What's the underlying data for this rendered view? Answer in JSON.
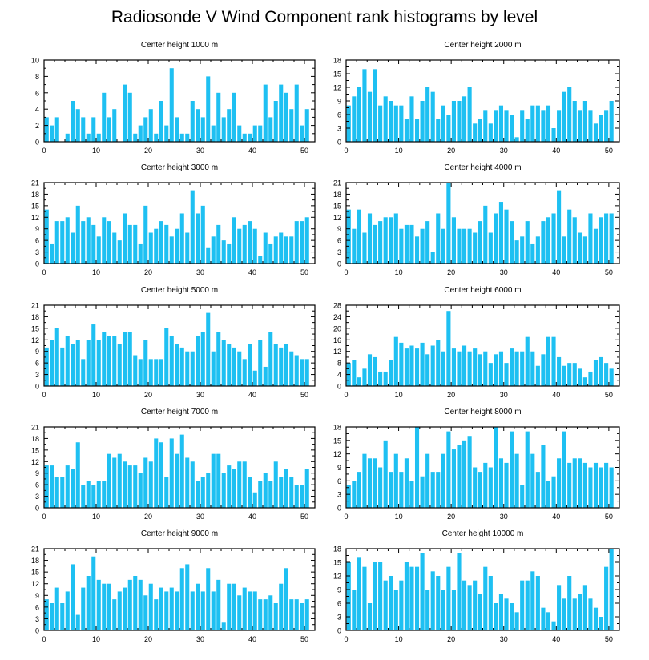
{
  "title": "Radiosonde V Wind Component rank histograms by level",
  "bar_color": "#1ec0f2",
  "chart_data": [
    {
      "type": "bar",
      "title": "Center height 1000 m",
      "xlim": [
        0,
        52
      ],
      "ylim": [
        0,
        10
      ],
      "xticks": [
        0,
        10,
        20,
        30,
        40,
        50
      ],
      "yticks": [
        0,
        2,
        4,
        6,
        8,
        10
      ],
      "values": [
        3,
        2,
        3,
        0,
        1,
        5,
        4,
        3,
        1,
        3,
        1,
        6,
        3,
        4,
        0,
        7,
        6,
        1,
        2,
        3,
        4,
        1,
        5,
        2,
        9,
        3,
        1,
        1,
        5,
        4,
        3,
        8,
        2,
        6,
        3,
        4,
        6,
        2,
        1,
        1,
        2,
        2,
        7,
        3,
        5,
        7,
        6,
        4,
        7,
        2,
        4
      ]
    },
    {
      "type": "bar",
      "title": "Center height 2000 m",
      "xlim": [
        0,
        52
      ],
      "ylim": [
        0,
        18
      ],
      "xticks": [
        0,
        10,
        20,
        30,
        40,
        50
      ],
      "yticks": [
        0,
        3,
        6,
        9,
        12,
        15,
        18
      ],
      "values": [
        8,
        10,
        12,
        16,
        11,
        16,
        8,
        10,
        9,
        8,
        8,
        5,
        10,
        5,
        9,
        12,
        11,
        5,
        8,
        6,
        9,
        9,
        10,
        12,
        4,
        5,
        7,
        4,
        7,
        8,
        7,
        6,
        1,
        7,
        5,
        8,
        8,
        7,
        8,
        3,
        7,
        11,
        12,
        9,
        7,
        9,
        7,
        4,
        6,
        7,
        9
      ]
    },
    {
      "type": "bar",
      "title": "Center height 3000 m",
      "xlim": [
        0,
        52
      ],
      "ylim": [
        0,
        21
      ],
      "xticks": [
        0,
        10,
        20,
        30,
        40,
        50
      ],
      "yticks": [
        0,
        3,
        6,
        9,
        12,
        15,
        18,
        21
      ],
      "values": [
        14,
        5,
        11,
        11,
        12,
        8,
        15,
        11,
        12,
        10,
        7,
        12,
        11,
        8,
        6,
        13,
        10,
        10,
        5,
        15,
        8,
        9,
        11,
        10,
        7,
        9,
        13,
        8,
        19,
        13,
        15,
        4,
        7,
        10,
        6,
        5,
        12,
        9,
        10,
        11,
        9,
        2,
        8,
        5,
        7,
        8,
        7,
        7,
        11,
        11,
        12
      ]
    },
    {
      "type": "bar",
      "title": "Center height 4000 m",
      "xlim": [
        0,
        52
      ],
      "ylim": [
        0,
        21
      ],
      "xticks": [
        0,
        10,
        20,
        30,
        40,
        50
      ],
      "yticks": [
        0,
        3,
        6,
        9,
        12,
        15,
        18,
        21
      ],
      "values": [
        14,
        9,
        14,
        8,
        13,
        10,
        11,
        12,
        12,
        13,
        9,
        10,
        10,
        7,
        9,
        11,
        3,
        13,
        9,
        21,
        12,
        9,
        9,
        9,
        8,
        11,
        15,
        8,
        13,
        16,
        14,
        11,
        6,
        7,
        11,
        5,
        7,
        11,
        12,
        13,
        19,
        7,
        14,
        12,
        8,
        7,
        13,
        9,
        12,
        13,
        13
      ]
    },
    {
      "type": "bar",
      "title": "Center height 5000 m",
      "xlim": [
        0,
        52
      ],
      "ylim": [
        0,
        21
      ],
      "xticks": [
        0,
        10,
        20,
        30,
        40,
        50
      ],
      "yticks": [
        0,
        3,
        6,
        9,
        12,
        15,
        18,
        21
      ],
      "values": [
        10,
        12,
        15,
        10,
        13,
        11,
        12,
        7,
        12,
        16,
        12,
        14,
        13,
        13,
        11,
        14,
        14,
        8,
        7,
        12,
        7,
        7,
        7,
        15,
        13,
        11,
        10,
        9,
        9,
        13,
        14,
        19,
        9,
        14,
        12,
        11,
        10,
        9,
        7,
        11,
        4,
        12,
        5,
        14,
        11,
        10,
        11,
        9,
        8,
        7,
        7
      ]
    },
    {
      "type": "bar",
      "title": "Center height 6000 m",
      "xlim": [
        0,
        52
      ],
      "ylim": [
        0,
        28
      ],
      "xticks": [
        0,
        10,
        20,
        30,
        40,
        50
      ],
      "yticks": [
        0,
        4,
        8,
        12,
        16,
        20,
        24,
        28
      ],
      "values": [
        8,
        9,
        3,
        6,
        11,
        10,
        5,
        5,
        9,
        17,
        15,
        13,
        14,
        13,
        15,
        11,
        14,
        16,
        12,
        26,
        13,
        12,
        14,
        12,
        13,
        11,
        12,
        8,
        11,
        12,
        8,
        13,
        12,
        12,
        17,
        12,
        7,
        11,
        17,
        17,
        10,
        7,
        8,
        8,
        6,
        3,
        5,
        9,
        10,
        8,
        6
      ]
    },
    {
      "type": "bar",
      "title": "Center height 7000 m",
      "xlim": [
        0,
        52
      ],
      "ylim": [
        0,
        21
      ],
      "xticks": [
        0,
        10,
        20,
        30,
        40,
        50
      ],
      "yticks": [
        0,
        3,
        6,
        9,
        12,
        15,
        18,
        21
      ],
      "values": [
        11,
        11,
        8,
        8,
        11,
        10,
        17,
        6,
        7,
        6,
        7,
        7,
        14,
        13,
        14,
        12,
        11,
        11,
        9,
        13,
        12,
        18,
        17,
        8,
        18,
        14,
        19,
        13,
        12,
        7,
        8,
        9,
        14,
        14,
        9,
        11,
        10,
        12,
        12,
        8,
        4,
        7,
        9,
        7,
        12,
        8,
        10,
        8,
        6,
        6,
        10
      ]
    },
    {
      "type": "bar",
      "title": "Center height 8000 m",
      "xlim": [
        0,
        52
      ],
      "ylim": [
        0,
        18
      ],
      "xticks": [
        0,
        10,
        20,
        30,
        40,
        50
      ],
      "yticks": [
        0,
        3,
        6,
        9,
        12,
        15,
        18
      ],
      "values": [
        5,
        6,
        8,
        12,
        11,
        11,
        9,
        15,
        8,
        12,
        8,
        11,
        6,
        18,
        7,
        12,
        8,
        8,
        12,
        17,
        13,
        14,
        15,
        16,
        9,
        8,
        10,
        9,
        18,
        11,
        10,
        17,
        12,
        5,
        17,
        12,
        8,
        14,
        6,
        7,
        11,
        17,
        10,
        11,
        11,
        10,
        9,
        10,
        9,
        10,
        9
      ]
    },
    {
      "type": "bar",
      "title": "Center height 9000 m",
      "xlim": [
        0,
        52
      ],
      "ylim": [
        0,
        21
      ],
      "xticks": [
        0,
        10,
        20,
        30,
        40,
        50
      ],
      "yticks": [
        0,
        3,
        6,
        9,
        12,
        15,
        18,
        21
      ],
      "values": [
        8,
        7,
        11,
        7,
        10,
        17,
        4,
        11,
        14,
        19,
        13,
        12,
        12,
        8,
        10,
        11,
        13,
        14,
        13,
        9,
        12,
        8,
        11,
        10,
        11,
        10,
        16,
        17,
        10,
        12,
        10,
        16,
        10,
        13,
        2,
        12,
        12,
        9,
        11,
        10,
        10,
        8,
        8,
        9,
        7,
        12,
        16,
        8,
        8,
        7,
        8
      ]
    },
    {
      "type": "bar",
      "title": "Center height 10000 m",
      "xlim": [
        0,
        52
      ],
      "ylim": [
        0,
        18
      ],
      "xticks": [
        0,
        10,
        20,
        30,
        40,
        50
      ],
      "yticks": [
        0,
        3,
        6,
        9,
        12,
        15,
        18
      ],
      "values": [
        15,
        9,
        16,
        14,
        6,
        15,
        15,
        11,
        12,
        9,
        11,
        15,
        14,
        14,
        17,
        9,
        13,
        12,
        9,
        14,
        9,
        17,
        11,
        10,
        11,
        8,
        14,
        12,
        6,
        8,
        7,
        6,
        4,
        11,
        11,
        13,
        12,
        5,
        4,
        2,
        10,
        7,
        12,
        7,
        8,
        10,
        7,
        5,
        3,
        14,
        18
      ]
    }
  ]
}
